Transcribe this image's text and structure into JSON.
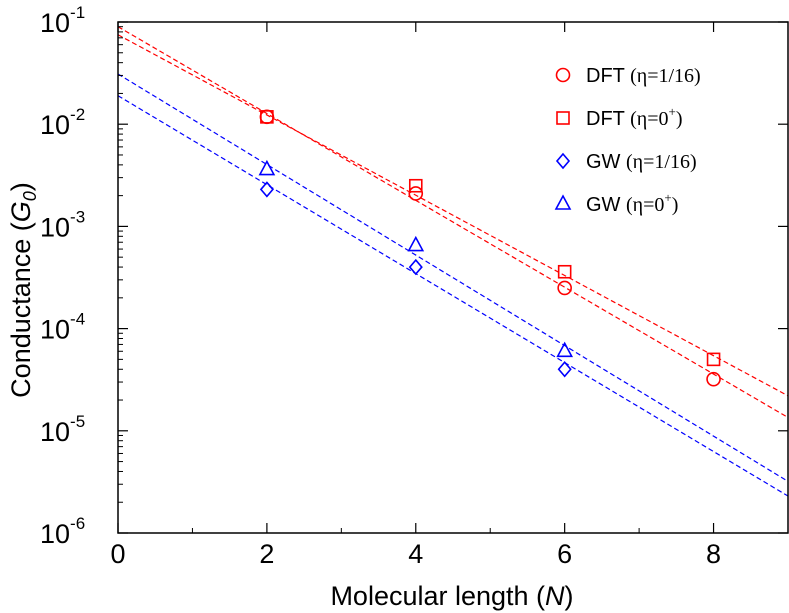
{
  "chart_data": {
    "type": "scatter",
    "yscale": "log",
    "xlabel_prefix": "Molecular length (",
    "xlabel_var": "N",
    "xlabel_suffix": ")",
    "ylabel_prefix": "Conductance (",
    "ylabel_var": "G",
    "ylabel_sub": "0",
    "ylabel_suffix": ")",
    "xlim": [
      0,
      9
    ],
    "ylim": [
      1e-06,
      0.1
    ],
    "x_ticks": [
      {
        "value": 0,
        "label": "0"
      },
      {
        "value": 2,
        "label": "2"
      },
      {
        "value": 4,
        "label": "4"
      },
      {
        "value": 6,
        "label": "6"
      },
      {
        "value": 8,
        "label": "8"
      }
    ],
    "y_ticks": [
      {
        "exp": -6,
        "base": "10",
        "sup": "-6"
      },
      {
        "exp": -5,
        "base": "10",
        "sup": "-5"
      },
      {
        "exp": -4,
        "base": "10",
        "sup": "-4"
      },
      {
        "exp": -3,
        "base": "10",
        "sup": "-3"
      },
      {
        "exp": -2,
        "base": "10",
        "sup": "-2"
      },
      {
        "exp": -1,
        "base": "10",
        "sup": "-1"
      }
    ],
    "legend_position": "top-right",
    "series": [
      {
        "name": "DFT (η=1/16)",
        "legend_main": "DFT ",
        "legend_eta": "(η=1/16)",
        "legend_sup": "",
        "legend_tail": "",
        "marker": "circle",
        "color": "#ff0000",
        "x": [
          2,
          4,
          6,
          8
        ],
        "y": [
          0.0118,
          0.0021,
          0.00025,
          3.2e-05
        ],
        "fit": {
          "x0": 0,
          "y0": 0.09,
          "x1": 9,
          "y1": 1.35e-05
        }
      },
      {
        "name": "DFT (η=0+)",
        "legend_main": "DFT ",
        "legend_eta": "(η=0",
        "legend_sup": "+",
        "legend_tail": ")",
        "marker": "square",
        "color": "#ff0000",
        "x": [
          2,
          4,
          6,
          8
        ],
        "y": [
          0.0118,
          0.0025,
          0.00036,
          5e-05
        ],
        "fit": {
          "x0": 0,
          "y0": 0.075,
          "x1": 9,
          "y1": 2.2e-05
        }
      },
      {
        "name": "GW (η=1/16)",
        "legend_main": "GW ",
        "legend_eta": "(η=1/16)",
        "legend_sup": "",
        "legend_tail": "",
        "marker": "diamond",
        "color": "#0000ff",
        "x": [
          2,
          4,
          6,
          8
        ],
        "y": [
          0.0023,
          0.0004,
          4e-05,
          null
        ],
        "fit": {
          "x0": 0,
          "y0": 0.019,
          "x1": 9,
          "y1": 2.3e-06
        }
      },
      {
        "name": "GW (η=0+)",
        "legend_main": "GW ",
        "legend_eta": "(η=0",
        "legend_sup": "+",
        "legend_tail": ")",
        "marker": "triangle",
        "color": "#0000ff",
        "x": [
          2,
          4,
          6,
          8
        ],
        "y": [
          0.0036,
          0.00065,
          6e-05,
          null
        ],
        "fit": {
          "x0": 0,
          "y0": 0.031,
          "x1": 9,
          "y1": 3.2e-06
        }
      }
    ]
  }
}
